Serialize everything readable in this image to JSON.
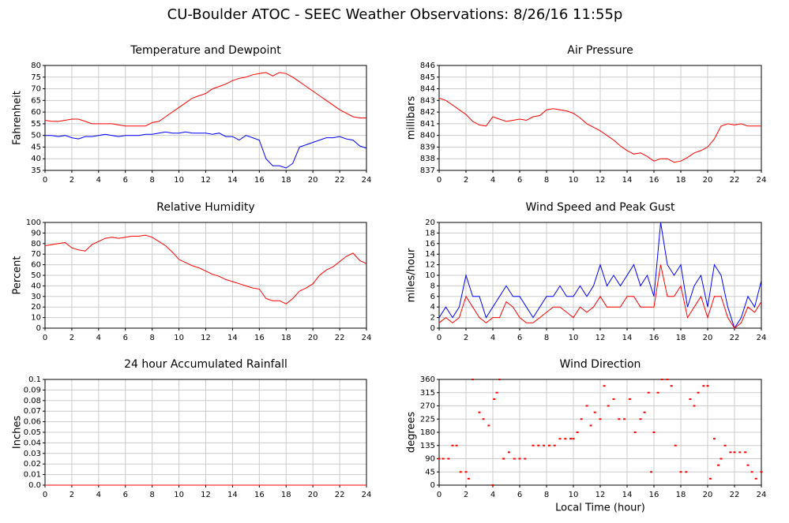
{
  "title": "CU-Boulder ATOC - SEEC Weather Observations: 8/26/16 11:55p",
  "chart_data": [
    {
      "type": "line",
      "title": "Temperature and Dewpoint",
      "ylabel": "Fahrenheit",
      "x": [
        0,
        0.5,
        1,
        1.5,
        2,
        2.5,
        3,
        3.5,
        4,
        4.5,
        5,
        5.5,
        6,
        6.5,
        7,
        7.5,
        8,
        8.5,
        9,
        9.5,
        10,
        10.5,
        11,
        11.5,
        12,
        12.5,
        13,
        13.5,
        14,
        14.5,
        15,
        15.5,
        16,
        16.5,
        17,
        17.5,
        18,
        18.5,
        19,
        19.5,
        20,
        20.5,
        21,
        21.5,
        22,
        22.5,
        23,
        23.5,
        24
      ],
      "series": [
        {
          "color": "#ff0000",
          "values": [
            56.5,
            56,
            56,
            56.5,
            57,
            57,
            56,
            55,
            55,
            55,
            55,
            54.5,
            54,
            54,
            54,
            54,
            55.5,
            56,
            58,
            60,
            62,
            64,
            66,
            67,
            68,
            70,
            71,
            72,
            73.5,
            74.5,
            75,
            76,
            76.5,
            77,
            75.5,
            77,
            76.5,
            75,
            73,
            71,
            69,
            67,
            65,
            63,
            61,
            59.5,
            58,
            57.5,
            57.5
          ]
        },
        {
          "color": "#0000ff",
          "values": [
            50,
            50,
            49.5,
            50,
            49,
            48.5,
            49.5,
            49.5,
            50,
            50.5,
            50,
            49.5,
            50,
            50,
            50,
            50.5,
            50.5,
            51,
            51.5,
            51,
            51,
            51.5,
            51,
            51,
            51,
            50.5,
            51,
            49.5,
            49.5,
            48,
            50,
            49,
            48,
            40,
            37,
            37,
            36,
            38,
            45,
            46,
            47,
            48,
            49,
            49,
            49.5,
            48.5,
            48,
            45.5,
            44.5
          ]
        }
      ],
      "xlim": [
        0,
        24
      ],
      "xticks": [
        0,
        2,
        4,
        6,
        8,
        10,
        12,
        14,
        16,
        18,
        20,
        22,
        24
      ],
      "ylim": [
        35,
        80
      ],
      "yticks": [
        35,
        40,
        45,
        50,
        55,
        60,
        65,
        70,
        75,
        80
      ],
      "grid": true
    },
    {
      "type": "line",
      "title": "Air Pressure",
      "ylabel": "millibars",
      "x": [
        0,
        0.5,
        1,
        1.5,
        2,
        2.5,
        3,
        3.5,
        4,
        4.5,
        5,
        5.5,
        6,
        6.5,
        7,
        7.5,
        8,
        8.5,
        9,
        9.5,
        10,
        10.5,
        11,
        11.5,
        12,
        12.5,
        13,
        13.5,
        14,
        14.5,
        15,
        15.5,
        16,
        16.5,
        17,
        17.5,
        18,
        18.5,
        19,
        19.5,
        20,
        20.5,
        21,
        21.5,
        22,
        22.5,
        23,
        23.5,
        24
      ],
      "series": [
        {
          "color": "#ff0000",
          "values": [
            843.2,
            843,
            842.6,
            842.2,
            841.8,
            841.2,
            840.9,
            840.8,
            841.6,
            841.4,
            841.2,
            841.3,
            841.4,
            841.3,
            841.6,
            841.7,
            842.2,
            842.3,
            842.2,
            842.1,
            841.9,
            841.5,
            841,
            840.7,
            840.4,
            840,
            839.6,
            839.1,
            838.7,
            838.4,
            838.5,
            838.2,
            837.8,
            838,
            838,
            837.7,
            837.8,
            838.1,
            838.5,
            838.7,
            839,
            839.7,
            840.8,
            841,
            840.9,
            841,
            840.8,
            840.8,
            840.8
          ]
        }
      ],
      "xlim": [
        0,
        24
      ],
      "xticks": [
        0,
        2,
        4,
        6,
        8,
        10,
        12,
        14,
        16,
        18,
        20,
        22,
        24
      ],
      "ylim": [
        837,
        846
      ],
      "yticks": [
        837,
        838,
        839,
        840,
        841,
        842,
        843,
        844,
        845,
        846
      ],
      "grid": true
    },
    {
      "type": "line",
      "title": "Relative Humidity",
      "ylabel": "Percent",
      "x": [
        0,
        0.5,
        1,
        1.5,
        2,
        2.5,
        3,
        3.5,
        4,
        4.5,
        5,
        5.5,
        6,
        6.5,
        7,
        7.5,
        8,
        8.5,
        9,
        9.5,
        10,
        10.5,
        11,
        11.5,
        12,
        12.5,
        13,
        13.5,
        14,
        14.5,
        15,
        15.5,
        16,
        16.5,
        17,
        17.5,
        18,
        18.5,
        19,
        19.5,
        20,
        20.5,
        21,
        21.5,
        22,
        22.5,
        23,
        23.5,
        24
      ],
      "series": [
        {
          "color": "#ff0000",
          "values": [
            78,
            79,
            80,
            81,
            76,
            74,
            73,
            79,
            82,
            85,
            86,
            85,
            86,
            87,
            87,
            88,
            86,
            82,
            78,
            72,
            65,
            62,
            59,
            57,
            54,
            51,
            49,
            46,
            44,
            42,
            40,
            38,
            37,
            28,
            26,
            26,
            23,
            28,
            35,
            38,
            42,
            50,
            55,
            58,
            63,
            68,
            71,
            64,
            61
          ]
        }
      ],
      "xlim": [
        0,
        24
      ],
      "xticks": [
        0,
        2,
        4,
        6,
        8,
        10,
        12,
        14,
        16,
        18,
        20,
        22,
        24
      ],
      "ylim": [
        0,
        100
      ],
      "yticks": [
        0,
        10,
        20,
        30,
        40,
        50,
        60,
        70,
        80,
        90,
        100
      ],
      "grid": true
    },
    {
      "type": "line",
      "title": "Wind Speed and Peak Gust",
      "ylabel": "miles/hour",
      "x": [
        0,
        0.5,
        1,
        1.5,
        2,
        2.5,
        3,
        3.5,
        4,
        4.5,
        5,
        5.5,
        6,
        6.5,
        7,
        7.5,
        8,
        8.5,
        9,
        9.5,
        10,
        10.5,
        11,
        11.5,
        12,
        12.5,
        13,
        13.5,
        14,
        14.5,
        15,
        15.5,
        16,
        16.5,
        17,
        17.5,
        18,
        18.5,
        19,
        19.5,
        20,
        20.5,
        21,
        21.5,
        22,
        22.5,
        23,
        23.5,
        24
      ],
      "series": [
        {
          "color": "#0000ff",
          "values": [
            2,
            4,
            2,
            4,
            10,
            6,
            6,
            2,
            4,
            6,
            8,
            6,
            6,
            4,
            2,
            4,
            6,
            6,
            8,
            6,
            6,
            8,
            6,
            8,
            12,
            8,
            10,
            8,
            10,
            12,
            8,
            10,
            6,
            20,
            12,
            10,
            12,
            4,
            8,
            10,
            4,
            12,
            10,
            4,
            0,
            2,
            6,
            4,
            9
          ]
        },
        {
          "color": "#ff0000",
          "values": [
            1,
            2,
            1,
            2,
            6,
            4,
            2,
            1,
            2,
            2,
            5,
            4,
            2,
            1,
            1,
            2,
            3,
            4,
            4,
            3,
            2,
            4,
            3,
            4,
            6,
            4,
            4,
            4,
            6,
            6,
            4,
            4,
            4,
            12,
            6,
            6,
            8,
            2,
            4,
            6,
            2,
            6,
            6,
            2,
            0,
            1,
            4,
            3,
            5
          ]
        }
      ],
      "xlim": [
        0,
        24
      ],
      "xticks": [
        0,
        2,
        4,
        6,
        8,
        10,
        12,
        14,
        16,
        18,
        20,
        22,
        24
      ],
      "ylim": [
        0,
        20
      ],
      "yticks": [
        0,
        2,
        4,
        6,
        8,
        10,
        12,
        14,
        16,
        18,
        20
      ],
      "grid": true
    },
    {
      "type": "line",
      "title": "24 hour Accumulated Rainfall",
      "ylabel": "Inches",
      "x": [
        0,
        24
      ],
      "series": [
        {
          "color": "#ff0000",
          "values": [
            0,
            0
          ]
        }
      ],
      "xlim": [
        0,
        24
      ],
      "xticks": [
        0,
        2,
        4,
        6,
        8,
        10,
        12,
        14,
        16,
        18,
        20,
        22,
        24
      ],
      "ylim": [
        0,
        0.1
      ],
      "yticks": [
        {
          "value": 0,
          "label": "0.0"
        },
        0.01,
        0.02,
        0.03,
        0.04,
        0.05,
        0.06,
        0.07,
        0.08,
        0.09,
        0.1
      ],
      "grid": true
    },
    {
      "type": "scatter",
      "title": "Wind Direction",
      "ylabel": "degrees",
      "xlabel": "Local Time (hour)",
      "x": [
        0,
        0.3,
        0.7,
        1,
        1.3,
        1.6,
        2,
        2.2,
        2.5,
        3,
        3.3,
        3.7,
        4,
        4.1,
        4.3,
        4.5,
        4.8,
        5.2,
        5.6,
        6,
        6.4,
        7,
        7.4,
        7.8,
        8.2,
        8.6,
        9,
        9.4,
        9.8,
        10,
        10.3,
        10.6,
        11,
        11.3,
        11.6,
        12,
        12.3,
        12.6,
        13,
        13.4,
        13.8,
        14.2,
        14.6,
        15,
        15.3,
        15.6,
        15.8,
        16,
        16.3,
        16.6,
        17,
        17.3,
        17.6,
        18,
        18.4,
        18.7,
        19,
        19.3,
        19.7,
        20,
        20.2,
        20.5,
        20.8,
        21,
        21.3,
        21.7,
        22,
        22.4,
        22.8,
        23,
        23.3,
        23.6,
        24
      ],
      "values": [
        90,
        90,
        90,
        135,
        135,
        45,
        45,
        22,
        360,
        248,
        225,
        203,
        0,
        293,
        315,
        360,
        90,
        112,
        90,
        90,
        90,
        135,
        135,
        135,
        135,
        135,
        158,
        158,
        158,
        158,
        180,
        225,
        270,
        203,
        248,
        225,
        338,
        270,
        293,
        225,
        225,
        293,
        180,
        225,
        248,
        315,
        45,
        180,
        315,
        360,
        360,
        338,
        135,
        45,
        45,
        293,
        270,
        315,
        338,
        338,
        22,
        158,
        68,
        90,
        135,
        112,
        112,
        112,
        112,
        68,
        45,
        22,
        45
      ],
      "color": "#ff0000",
      "xlim": [
        0,
        24
      ],
      "xticks": [
        0,
        2,
        4,
        6,
        8,
        10,
        12,
        14,
        16,
        18,
        20,
        22,
        24
      ],
      "ylim": [
        0,
        360
      ],
      "yticks": [
        0,
        45,
        90,
        135,
        180,
        225,
        270,
        315,
        360
      ],
      "grid": true
    }
  ]
}
